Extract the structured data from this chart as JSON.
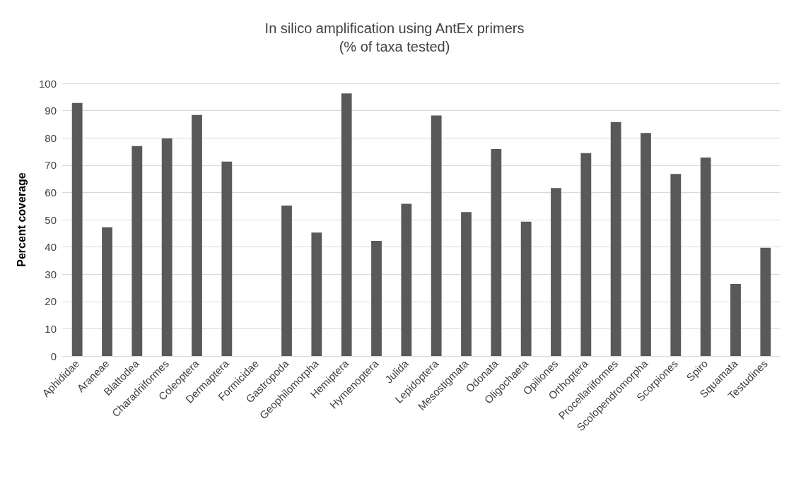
{
  "chart_data": {
    "type": "bar",
    "title": "In silico amplification using AntEx primers\n(% of taxa tested)",
    "ylabel": "Percent coverage",
    "categories": [
      "Aphididae",
      "Araneae",
      "Blattodea",
      "Charadriiformes",
      "Coleoptera",
      "Dermaptera",
      "Formicidae",
      "Gastropoda",
      "Geophilomorpha",
      "Hemiptera",
      "Hymenoptera",
      "Julida",
      "Lepidoptera",
      "Mesostigmata",
      "Odonata",
      "Oligochaeta",
      "Opiliones",
      "Orthoptera",
      "Procellariiformes",
      "Scolopendromorpha",
      "Scorpiones",
      "Spiro",
      "Squamata",
      "Testudines"
    ],
    "values": [
      92.8,
      47.2,
      77,
      79.8,
      88.4,
      71.3,
      0,
      55.2,
      45.3,
      96.3,
      42.2,
      55.8,
      88.2,
      52.8,
      75.9,
      49.3,
      61.6,
      74.4,
      85.8,
      81.8,
      66.8,
      72.8,
      26.4,
      39.7
    ],
    "color": "#595959",
    "ylim": [
      0,
      100
    ],
    "yticks": [
      0,
      10,
      20,
      30,
      40,
      50,
      60,
      70,
      80,
      90,
      100
    ],
    "grid": "y"
  }
}
